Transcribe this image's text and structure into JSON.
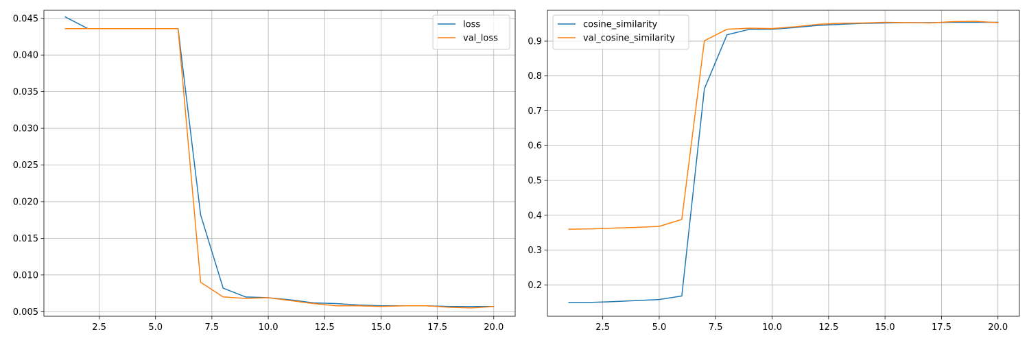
{
  "chart_data": [
    {
      "type": "line",
      "title": "",
      "xlabel": "",
      "ylabel": "",
      "xlim": [
        0.05,
        20.95
      ],
      "ylim": [
        0.00437,
        0.0461
      ],
      "xticks": [
        2.5,
        5.0,
        7.5,
        10.0,
        12.5,
        15.0,
        17.5,
        20.0
      ],
      "xtick_labels": [
        "2.5",
        "5.0",
        "7.5",
        "10.0",
        "12.5",
        "15.0",
        "17.5",
        "20.0"
      ],
      "yticks": [
        0.005,
        0.01,
        0.015,
        0.02,
        0.025,
        0.03,
        0.035,
        0.04,
        0.045
      ],
      "ytick_labels": [
        "0.005",
        "0.010",
        "0.015",
        "0.020",
        "0.025",
        "0.030",
        "0.035",
        "0.040",
        "0.045"
      ],
      "grid": true,
      "legend": "top-right",
      "x": [
        1,
        2,
        3,
        4,
        5,
        6,
        7,
        8,
        9,
        10,
        11,
        12,
        13,
        14,
        15,
        16,
        17,
        18,
        19,
        20
      ],
      "series": [
        {
          "name": "loss",
          "color": "#1f77b4",
          "values": [
            0.0452,
            0.0436,
            0.0436,
            0.0436,
            0.0436,
            0.0436,
            0.0182,
            0.0082,
            0.007,
            0.0069,
            0.0066,
            0.0062,
            0.0061,
            0.0059,
            0.0058,
            0.0058,
            0.0058,
            0.0057,
            0.0057,
            0.0057
          ]
        },
        {
          "name": "val_loss",
          "color": "#ff7f0e",
          "values": [
            0.0436,
            0.0436,
            0.0436,
            0.0436,
            0.0436,
            0.0436,
            0.009,
            0.007,
            0.0068,
            0.0069,
            0.0065,
            0.0061,
            0.0058,
            0.0058,
            0.0057,
            0.0058,
            0.0058,
            0.0056,
            0.0055,
            0.0057
          ]
        }
      ]
    },
    {
      "type": "line",
      "title": "",
      "xlabel": "",
      "ylabel": "",
      "xlim": [
        0.05,
        20.95
      ],
      "ylim": [
        0.11,
        0.9885
      ],
      "xticks": [
        2.5,
        5.0,
        7.5,
        10.0,
        12.5,
        15.0,
        17.5,
        20.0
      ],
      "xtick_labels": [
        "2.5",
        "5.0",
        "7.5",
        "10.0",
        "12.5",
        "15.0",
        "17.5",
        "20.0"
      ],
      "yticks": [
        0.2,
        0.3,
        0.4,
        0.5,
        0.6,
        0.7,
        0.8,
        0.9
      ],
      "ytick_labels": [
        "0.2",
        "0.3",
        "0.4",
        "0.5",
        "0.6",
        "0.7",
        "0.8",
        "0.9"
      ],
      "grid": true,
      "legend": "top-left",
      "x": [
        1,
        2,
        3,
        4,
        5,
        6,
        7,
        8,
        9,
        10,
        11,
        12,
        13,
        14,
        15,
        16,
        17,
        18,
        19,
        20
      ],
      "series": [
        {
          "name": "cosine_similarity",
          "color": "#1f77b4",
          "values": [
            0.15,
            0.15,
            0.152,
            0.155,
            0.158,
            0.168,
            0.763,
            0.918,
            0.934,
            0.934,
            0.939,
            0.945,
            0.948,
            0.951,
            0.952,
            0.953,
            0.953,
            0.954,
            0.954,
            0.954
          ]
        },
        {
          "name": "val_cosine_similarity",
          "color": "#ff7f0e",
          "values": [
            0.36,
            0.361,
            0.363,
            0.365,
            0.368,
            0.388,
            0.901,
            0.934,
            0.937,
            0.936,
            0.941,
            0.948,
            0.951,
            0.952,
            0.954,
            0.953,
            0.952,
            0.956,
            0.957,
            0.953
          ]
        }
      ]
    }
  ]
}
